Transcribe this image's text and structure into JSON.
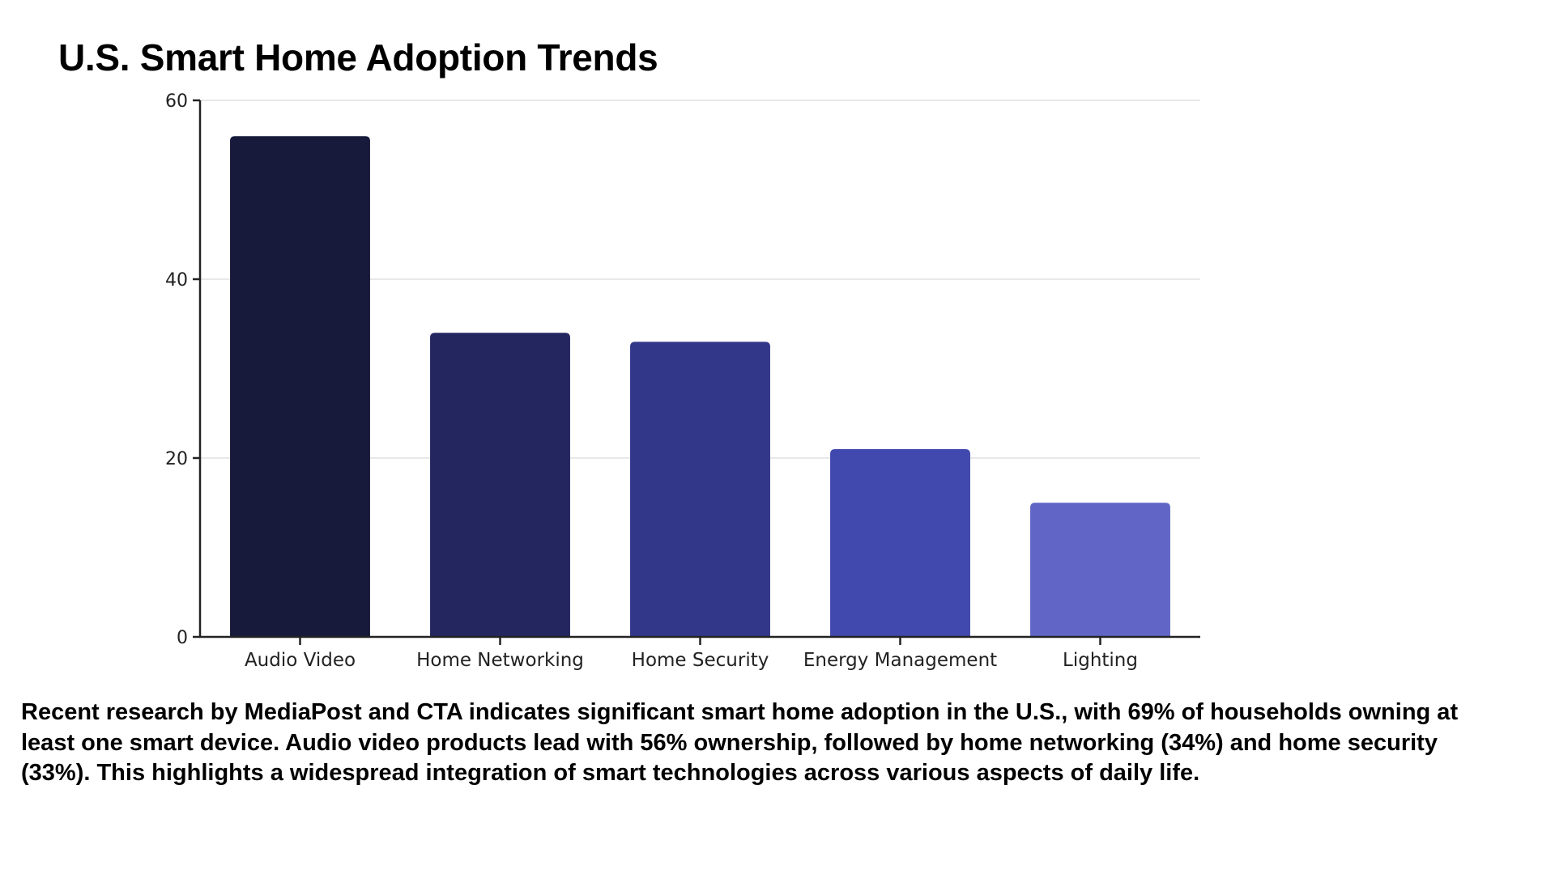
{
  "title": "U.S. Smart Home Adoption Trends",
  "description": "Recent research by MediaPost and CTA indicates significant smart home adoption in the U.S., with 69% of households owning at least one smart device. Audio video products lead with 56% ownership, followed by home networking (34%) and home security (33%). This highlights a widespread integration of smart technologies across various aspects of daily life.",
  "chart_data": {
    "type": "bar",
    "title": "",
    "xlabel": "",
    "ylabel": "",
    "categories": [
      "Audio Video",
      "Home Networking",
      "Home Security",
      "Energy Management",
      "Lighting"
    ],
    "values": [
      56,
      34,
      33,
      21,
      15
    ],
    "colors": [
      "#181a3b",
      "#23265f",
      "#333789",
      "#4148ae",
      "#6166c6"
    ],
    "ylim": [
      0,
      60
    ],
    "yticks": [
      "0",
      "20",
      "40",
      "60"
    ],
    "grid": true,
    "legend": "none"
  }
}
